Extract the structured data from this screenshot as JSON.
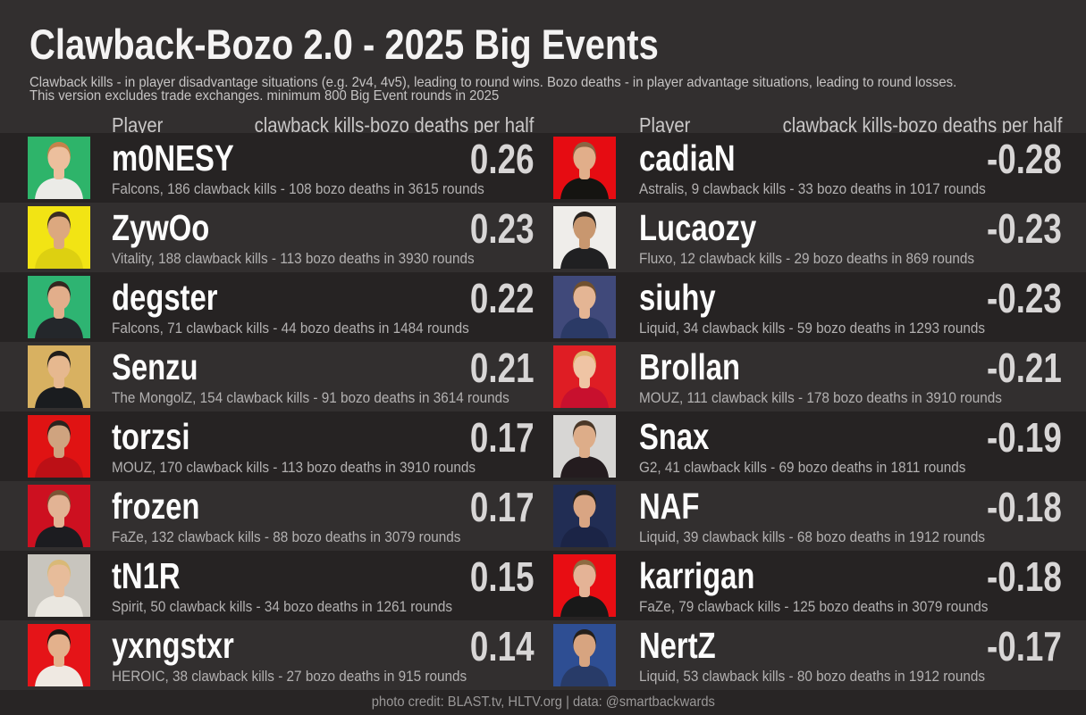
{
  "title": "Clawback-Bozo 2.0 - 2025 Big Events",
  "subtitle_line1": "Clawback kills - in player disadvantage situations (e.g. 2v4, 4v5), leading to round wins. Bozo deaths - in player advantage situations, leading to round losses.",
  "subtitle_line2": "This version excludes trade exchanges. minimum 800 Big Event rounds in 2025",
  "column_headers": {
    "player": "Player",
    "stat": "clawback kills-bozo deaths per half"
  },
  "footer": "photo credit: BLAST.tv, HLTV.org | data: @smartbackwards",
  "colors": {
    "background": "#322f2f",
    "row_odd": "#262323",
    "footer_bar": "#282525",
    "title": "#f4f3f3",
    "subtitle": "#c6c4c4",
    "header": "#cac8c8",
    "name": "#fcfcfc",
    "value": "#d8d6d6",
    "detail": "#b3b1b1",
    "footer_text": "#9a9898"
  },
  "chart_data": {
    "type": "table",
    "title": "Clawback-Bozo 2.0 - 2025 Big Events",
    "columns": [
      "Player",
      "clawback kills-bozo deaths per half"
    ],
    "left": [
      {
        "name": "m0NESY",
        "value": "0.26",
        "team": "Falcons",
        "clawback_kills": 186,
        "bozo_deaths": 108,
        "rounds": 3615,
        "detail": "Falcons, 186 clawback kills - 108 bozo deaths in 3615 rounds",
        "photo": {
          "bg": "#2eb46a",
          "jersey": "#ebebe7",
          "skin": "#ecbf9d",
          "hair": "#c5834b"
        }
      },
      {
        "name": "ZywOo",
        "value": "0.23",
        "team": "Vitality",
        "clawback_kills": 188,
        "bozo_deaths": 113,
        "rounds": 3930,
        "detail": "Vitality, 188 clawback kills - 113 bozo deaths in 3930 rounds",
        "photo": {
          "bg": "#f2e414",
          "jersey": "#ddd011",
          "skin": "#dca87f",
          "hair": "#3b2d22"
        }
      },
      {
        "name": "degster",
        "value": "0.22",
        "team": "Falcons",
        "clawback_kills": 71,
        "bozo_deaths": 44,
        "rounds": 1484,
        "detail": "Falcons, 71 clawback kills - 44 bozo deaths in 1484 rounds",
        "photo": {
          "bg": "#2eb472",
          "jersey": "#24272b",
          "skin": "#e2ae8b",
          "hair": "#33271f"
        }
      },
      {
        "name": "Senzu",
        "value": "0.21",
        "team": "The MongolZ",
        "clawback_kills": 154,
        "bozo_deaths": 91,
        "rounds": 3614,
        "detail": "The MongolZ, 154 clawback kills - 91 bozo deaths in 3614 rounds",
        "photo": {
          "bg": "#d8b161",
          "jersey": "#1a1c1f",
          "skin": "#e6b88f",
          "hair": "#201d1a"
        }
      },
      {
        "name": "torzsi",
        "value": "0.17",
        "team": "MOUZ",
        "clawback_kills": 170,
        "bozo_deaths": 113,
        "rounds": 3910,
        "detail": "MOUZ, 170 clawback kills - 113 bozo deaths in 3910 rounds",
        "photo": {
          "bg": "#e01313",
          "jersey": "#bc1016",
          "skin": "#cfa37f",
          "hair": "#2a231e"
        }
      },
      {
        "name": "frozen",
        "value": "0.17",
        "team": "FaZe",
        "clawback_kills": 132,
        "bozo_deaths": 88,
        "rounds": 3079,
        "detail": "FaZe, 132 clawback kills - 88 bozo deaths in 3079 rounds",
        "photo": {
          "bg": "#cd1020",
          "jersey": "#1c1c20",
          "skin": "#e2b394",
          "hair": "#7a5535"
        }
      },
      {
        "name": "tN1R",
        "value": "0.15",
        "team": "Spirit",
        "clawback_kills": 50,
        "bozo_deaths": 34,
        "rounds": 1261,
        "detail": "Spirit, 50 clawback kills - 34 bozo deaths in 1261 rounds",
        "photo": {
          "bg": "#c8c5be",
          "jersey": "#eae7e0",
          "skin": "#e7bc9a",
          "hair": "#d9b977"
        }
      },
      {
        "name": "yxngstxr",
        "value": "0.14",
        "team": "HEROIC",
        "clawback_kills": 38,
        "bozo_deaths": 27,
        "rounds": 915,
        "detail": "HEROIC, 38 clawback kills - 27 bozo deaths in 915 rounds",
        "photo": {
          "bg": "#e51418",
          "jersey": "#efe9e2",
          "skin": "#e3b18c",
          "hair": "#1b1713"
        }
      }
    ],
    "right": [
      {
        "name": "cadiaN",
        "value": "-0.28",
        "team": "Astralis",
        "clawback_kills": 9,
        "bozo_deaths": 33,
        "rounds": 1017,
        "detail": "Astralis, 9 clawback kills - 33 bozo deaths in 1017 rounds",
        "photo": {
          "bg": "#e60c12",
          "jersey": "#151411",
          "skin": "#e1ae8a",
          "hair": "#8a6543"
        }
      },
      {
        "name": "Lucaozy",
        "value": "-0.23",
        "team": "Fluxo",
        "clawback_kills": 12,
        "bozo_deaths": 29,
        "rounds": 869,
        "detail": "Fluxo, 12 clawback kills - 29 bozo deaths in 869 rounds",
        "photo": {
          "bg": "#efedea",
          "jersey": "#202022",
          "skin": "#c8976f",
          "hair": "#29221d"
        }
      },
      {
        "name": "siuhy",
        "value": "-0.23",
        "team": "Liquid",
        "clawback_kills": 34,
        "bozo_deaths": 59,
        "rounds": 1293,
        "detail": "Liquid, 34 clawback kills - 59 bozo deaths in 1293 rounds",
        "photo": {
          "bg": "#40497a",
          "jersey": "#2b3a66",
          "skin": "#e4b594",
          "hair": "#70502f"
        }
      },
      {
        "name": "Brollan",
        "value": "-0.21",
        "team": "MOUZ",
        "clawback_kills": 111,
        "bozo_deaths": 178,
        "rounds": 3910,
        "detail": "MOUZ, 111 clawback kills - 178 bozo deaths in 3910 rounds",
        "photo": {
          "bg": "#df1d24",
          "jersey": "#c8102e",
          "skin": "#efc4a4",
          "hair": "#dcb26c"
        }
      },
      {
        "name": "Snax",
        "value": "-0.19",
        "team": "G2",
        "clawback_kills": 41,
        "bozo_deaths": 69,
        "rounds": 1811,
        "detail": "G2, 41 clawback kills - 69 bozo deaths in 1811 rounds",
        "photo": {
          "bg": "#d7d6d4",
          "jersey": "#241c1f",
          "skin": "#ddad89",
          "hair": "#4a3828"
        }
      },
      {
        "name": "NAF",
        "value": "-0.18",
        "team": "Liquid",
        "clawback_kills": 39,
        "bozo_deaths": 68,
        "rounds": 1912,
        "detail": "Liquid, 39 clawback kills - 68 bozo deaths in 1912 rounds",
        "photo": {
          "bg": "#212d54",
          "jersey": "#1b2446",
          "skin": "#d9a583",
          "hair": "#272019"
        }
      },
      {
        "name": "karrigan",
        "value": "-0.18",
        "team": "FaZe",
        "clawback_kills": 79,
        "bozo_deaths": 125,
        "rounds": 3079,
        "detail": "FaZe, 79 clawback kills - 125 bozo deaths in 3079 rounds",
        "photo": {
          "bg": "#e80d13",
          "jersey": "#191919",
          "skin": "#e4b396",
          "hair": "#8e6b41"
        }
      },
      {
        "name": "NertZ",
        "value": "-0.17",
        "team": "Liquid",
        "clawback_kills": 53,
        "bozo_deaths": 80,
        "rounds": 1912,
        "detail": "Liquid, 53 clawback kills - 80 bozo deaths in 1912 rounds",
        "photo": {
          "bg": "#2e4e93",
          "jersey": "#283b68",
          "skin": "#d7a480",
          "hair": "#251f1a"
        }
      }
    ]
  }
}
